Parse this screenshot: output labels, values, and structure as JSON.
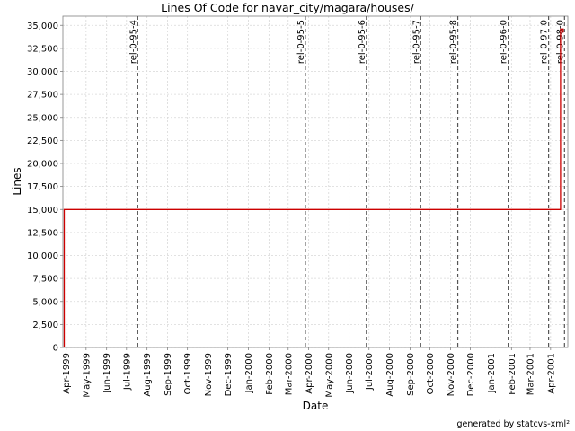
{
  "chart_data": {
    "type": "line",
    "title": "Lines Of Code for navar_city/magara/houses/",
    "xlabel": "Date",
    "ylabel": "Lines",
    "footer": "generated by statcvs-xml²",
    "ylim": [
      0,
      36000
    ],
    "y_ticks": [
      0,
      2500,
      5000,
      7500,
      10000,
      12500,
      15000,
      17500,
      20000,
      22500,
      25000,
      27500,
      30000,
      32500,
      35000
    ],
    "y_tick_labels": [
      "0",
      "2,500",
      "5,000",
      "7,500",
      "10,000",
      "12,500",
      "15,000",
      "17,500",
      "20,000",
      "22,500",
      "25,000",
      "27,500",
      "30,000",
      "32,500",
      "35,000"
    ],
    "xlim": [
      "1999-03-27",
      "2001-04-27"
    ],
    "x_ticks": [
      "1999-04-01",
      "1999-05-01",
      "1999-06-01",
      "1999-07-01",
      "1999-08-01",
      "1999-09-01",
      "1999-10-01",
      "1999-11-01",
      "1999-12-01",
      "2000-01-01",
      "2000-02-01",
      "2000-03-01",
      "2000-04-01",
      "2000-05-01",
      "2000-06-01",
      "2000-07-01",
      "2000-08-01",
      "2000-09-01",
      "2000-10-01",
      "2000-11-01",
      "2000-12-01",
      "2001-01-01",
      "2001-02-01",
      "2001-03-01",
      "2001-04-01"
    ],
    "x_tick_labels": [
      "Apr-1999",
      "May-1999",
      "Jun-1999",
      "Jul-1999",
      "Aug-1999",
      "Sep-1999",
      "Oct-1999",
      "Nov-1999",
      "Dec-1999",
      "Jan-2000",
      "Feb-2000",
      "Mar-2000",
      "Apr-2000",
      "May-2000",
      "Jun-2000",
      "Jul-2000",
      "Aug-2000",
      "Sep-2000",
      "Oct-2000",
      "Nov-2000",
      "Dec-2000",
      "Jan-2001",
      "Feb-2001",
      "Mar-2001",
      "Apr-2001"
    ],
    "grid": true,
    "series": [
      {
        "color": "#cc0000",
        "step": true,
        "x": [
          "1999-03-29",
          "2001-04-16",
          "2001-04-20"
        ],
        "y": [
          15000,
          34600,
          34200
        ]
      }
    ],
    "markers": [
      {
        "label": "rel-0-95-4",
        "date": "1999-07-18"
      },
      {
        "label": "rel-0-95-5",
        "date": "2000-03-27"
      },
      {
        "label": "rel-0-95-6",
        "date": "2000-06-27"
      },
      {
        "label": "rel-0-95-7",
        "date": "2000-09-17"
      },
      {
        "label": "rel-0-95-8",
        "date": "2000-11-12"
      },
      {
        "label": "rel-0-96-0",
        "date": "2001-01-27"
      },
      {
        "label": "rel-0-97-0",
        "date": "2001-03-29"
      },
      {
        "label": "rel-0-98-0",
        "date": "2001-04-22"
      }
    ],
    "colors": {
      "line": "#cc0000",
      "grid": "#d8d8d8",
      "marker": "#555555",
      "axis": "#808080"
    }
  }
}
